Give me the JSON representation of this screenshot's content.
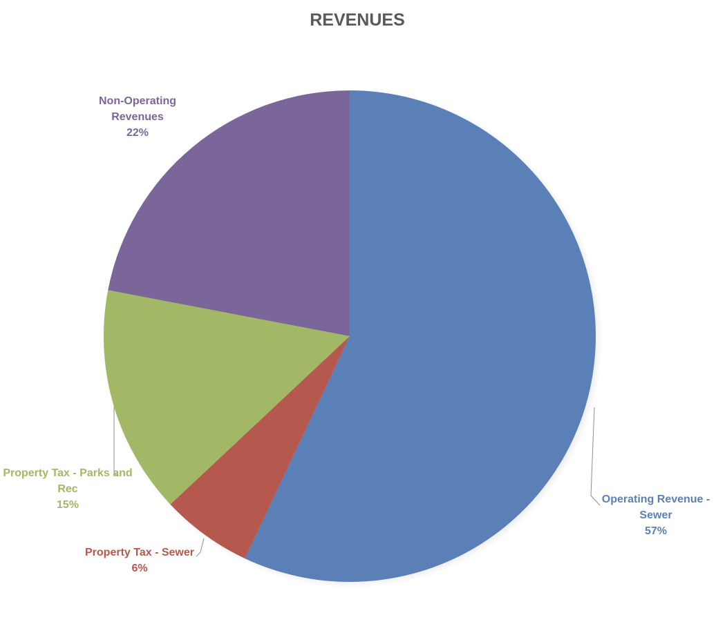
{
  "chart_data": {
    "type": "pie",
    "title": "REVENUES",
    "slices": [
      {
        "name": "Operating Revenue - Sewer",
        "label_lines": [
          "Operating Revenue -",
          "Sewer"
        ],
        "percent_label": "57%",
        "value": 57,
        "color": "#5b80b7"
      },
      {
        "name": "Property Tax - Sewer",
        "label_lines": [
          "Property Tax - Sewer"
        ],
        "percent_label": "6%",
        "value": 6,
        "color": "#b5584e"
      },
      {
        "name": "Property Tax - Parks and Rec",
        "label_lines": [
          "Property Tax - Parks and",
          "Rec"
        ],
        "percent_label": "15%",
        "value": 15,
        "color": "#a2b866"
      },
      {
        "name": "Non-Operating Revenues",
        "label_lines": [
          "Non-Operating",
          "Revenues"
        ],
        "percent_label": "22%",
        "value": 22,
        "color": "#7a6699"
      }
    ],
    "start_angle_deg": 0,
    "direction": "clockwise",
    "legend": "none",
    "data_labels": "outside-with-leaders"
  }
}
